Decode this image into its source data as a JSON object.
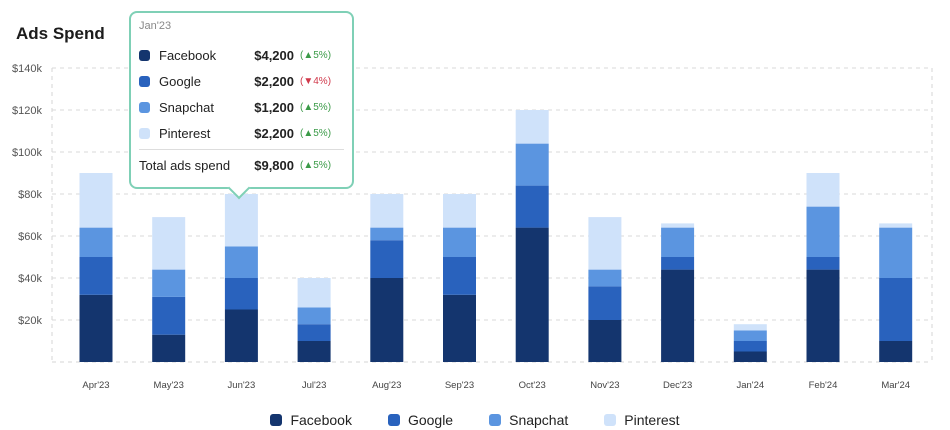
{
  "title": "Ads Spend",
  "colors": {
    "Facebook": "#14356e",
    "Google": "#2962bd",
    "Snapchat": "#5b95e0",
    "Pinterest": "#cfe2fa"
  },
  "legend": [
    {
      "label": "Facebook",
      "color": "#14356e"
    },
    {
      "label": "Google",
      "color": "#2962bd"
    },
    {
      "label": "Snapchat",
      "color": "#5b95e0"
    },
    {
      "label": "Pinterest",
      "color": "#cfe2fa"
    }
  ],
  "tooltip": {
    "month": "Jan'23",
    "rows": [
      {
        "name": "Facebook",
        "value": "$4,200",
        "arrow": "▲",
        "change": "5%",
        "dir": "up",
        "color": "#14356e"
      },
      {
        "name": "Google",
        "value": "$2,200",
        "arrow": "▼",
        "change": "4%",
        "dir": "down",
        "color": "#2962bd"
      },
      {
        "name": "Snapchat",
        "value": "$1,200",
        "arrow": "▲",
        "change": "5%",
        "dir": "up",
        "color": "#5b95e0"
      },
      {
        "name": "Pinterest",
        "value": "$2,200",
        "arrow": "▲",
        "change": "5%",
        "dir": "up",
        "color": "#cfe2fa"
      }
    ],
    "total": {
      "name": "Total ads spend",
      "value": "$9,800",
      "arrow": "▲",
      "change": "5%",
      "dir": "up"
    }
  },
  "chart_data": {
    "type": "bar",
    "stacked": true,
    "title": "Ads Spend",
    "categories": [
      "Apr'23",
      "May'23",
      "Jun'23",
      "Jul'23",
      "Aug'23",
      "Sep'23",
      "Oct'23",
      "Nov'23",
      "Dec'23",
      "Jan'24",
      "Feb'24",
      "Mar'24"
    ],
    "series": [
      {
        "name": "Facebook",
        "values": [
          32000,
          13000,
          25000,
          10000,
          40000,
          32000,
          64000,
          20000,
          44000,
          5000,
          44000,
          10000
        ]
      },
      {
        "name": "Google",
        "values": [
          18000,
          18000,
          15000,
          8000,
          18000,
          18000,
          20000,
          16000,
          6000,
          5000,
          6000,
          30000
        ]
      },
      {
        "name": "Snapchat",
        "values": [
          14000,
          13000,
          15000,
          8000,
          6000,
          14000,
          20000,
          8000,
          14000,
          5000,
          24000,
          24000
        ]
      },
      {
        "name": "Pinterest",
        "values": [
          26000,
          25000,
          25000,
          14000,
          16000,
          16000,
          16000,
          25000,
          2000,
          3000,
          16000,
          2000
        ]
      }
    ],
    "yticks": [
      "$20k",
      "$40k",
      "$60k",
      "$80k",
      "$100k",
      "$120k",
      "$140k"
    ],
    "ylim": [
      0,
      140000
    ],
    "grid": true,
    "legend": "bottom"
  }
}
